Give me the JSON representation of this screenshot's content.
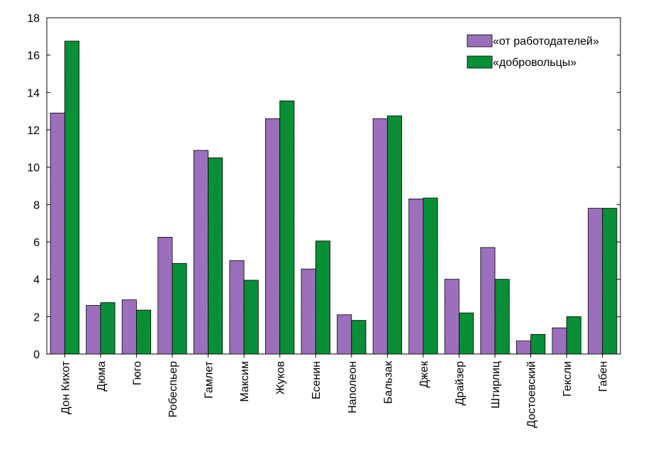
{
  "chart_data": {
    "type": "bar",
    "categories": [
      "Дон Кихот",
      "Дюма",
      "Гюго",
      "Робеспьер",
      "Гамлет",
      "Максим",
      "Жуков",
      "Есенин",
      "Наполеон",
      "Бальзак",
      "Джек",
      "Драйзер",
      "Штирлиц",
      "Достоевский",
      "Гексли",
      "Габен"
    ],
    "series": [
      {
        "name": "«от работодателей»",
        "color": "#a67bc6",
        "values": [
          12.9,
          2.6,
          2.9,
          6.25,
          10.9,
          5.0,
          12.6,
          4.55,
          2.1,
          12.6,
          8.3,
          4.0,
          5.7,
          0.7,
          1.4,
          7.8
        ]
      },
      {
        "name": "«добровольцы»",
        "color": "#0a9a3c",
        "values": [
          16.75,
          2.75,
          2.35,
          4.85,
          10.5,
          3.95,
          13.55,
          6.05,
          1.8,
          12.75,
          8.35,
          2.2,
          4.0,
          1.05,
          2.0,
          7.8
        ]
      }
    ],
    "ylim": [
      0,
      18
    ],
    "yticks": [
      0,
      2,
      4,
      6,
      8,
      10,
      12,
      14,
      16,
      18
    ],
    "ytick_labels": [
      "0",
      "2",
      "4",
      "6",
      "8",
      "10",
      "12",
      "14",
      "16",
      "18"
    ],
    "grid": false,
    "legend_position": "top-right",
    "title": "",
    "xlabel": "",
    "ylabel": ""
  }
}
